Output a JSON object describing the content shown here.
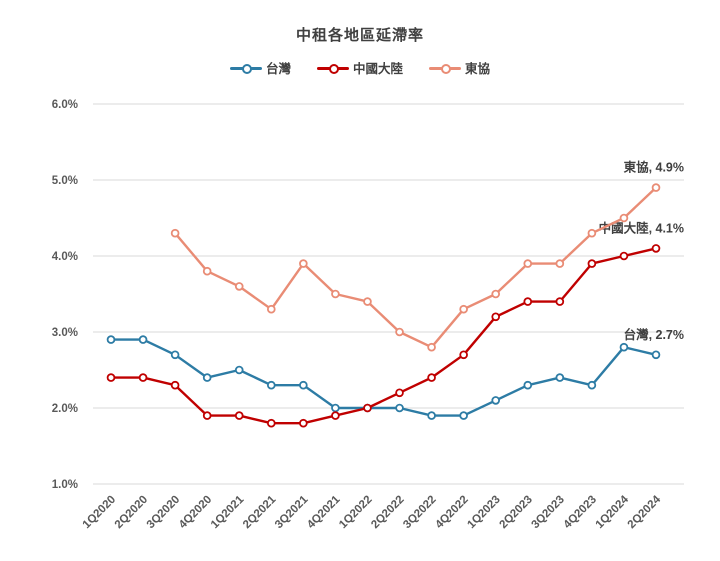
{
  "title": "中租各地區延滯率",
  "legend": {
    "items": [
      {
        "label": "台灣",
        "color": "#2D7CA5"
      },
      {
        "label": "中國大陸",
        "color": "#C00000"
      },
      {
        "label": "東協",
        "color": "#E98C75"
      }
    ]
  },
  "colors": {
    "taiwan": "#2D7CA5",
    "china": "#C00000",
    "asean": "#E98C75",
    "gridline": "#D9D9D9",
    "axis_text": "#595959",
    "label_text": "#404040"
  },
  "chart_data": {
    "type": "line",
    "title": "中租各地區延滯率",
    "categories": [
      "1Q2020",
      "2Q2020",
      "3Q2020",
      "4Q2020",
      "1Q2021",
      "2Q2021",
      "3Q2021",
      "4Q2021",
      "1Q2022",
      "2Q2022",
      "3Q2022",
      "4Q2022",
      "1Q2023",
      "2Q2023",
      "3Q2023",
      "4Q2023",
      "1Q2024",
      "2Q2024"
    ],
    "series": [
      {
        "name": "台灣",
        "color": "#2D7CA5",
        "values": [
          2.9,
          2.9,
          2.7,
          2.4,
          2.5,
          2.3,
          2.3,
          2.0,
          2.0,
          2.0,
          1.9,
          1.9,
          2.1,
          2.3,
          2.4,
          2.3,
          2.8,
          2.7
        ],
        "end_label": "台灣, 2.7%"
      },
      {
        "name": "中國大陸",
        "color": "#C00000",
        "values": [
          2.4,
          2.4,
          2.3,
          1.9,
          1.9,
          1.8,
          1.8,
          1.9,
          2.0,
          2.2,
          2.4,
          2.7,
          3.2,
          3.4,
          3.4,
          3.9,
          4.0,
          4.1
        ],
        "end_label": "中國大陸, 4.1%"
      },
      {
        "name": "東協",
        "color": "#E98C75",
        "values": [
          null,
          null,
          4.3,
          3.8,
          3.6,
          3.3,
          3.9,
          3.5,
          3.4,
          3.0,
          2.8,
          3.3,
          3.5,
          3.9,
          3.9,
          4.3,
          4.5,
          4.9
        ],
        "end_label": "東協, 4.9%"
      }
    ],
    "ylim": [
      1.0,
      6.0
    ],
    "ytick_step": 1.0,
    "ytick_labels": [
      "1.0%",
      "2.0%",
      "3.0%",
      "4.0%",
      "5.0%",
      "6.0%"
    ],
    "xlabel": "",
    "ylabel": "",
    "grid": "horizontal-only",
    "legend_position": "top-center",
    "x_tick_rotation_deg": 45
  }
}
